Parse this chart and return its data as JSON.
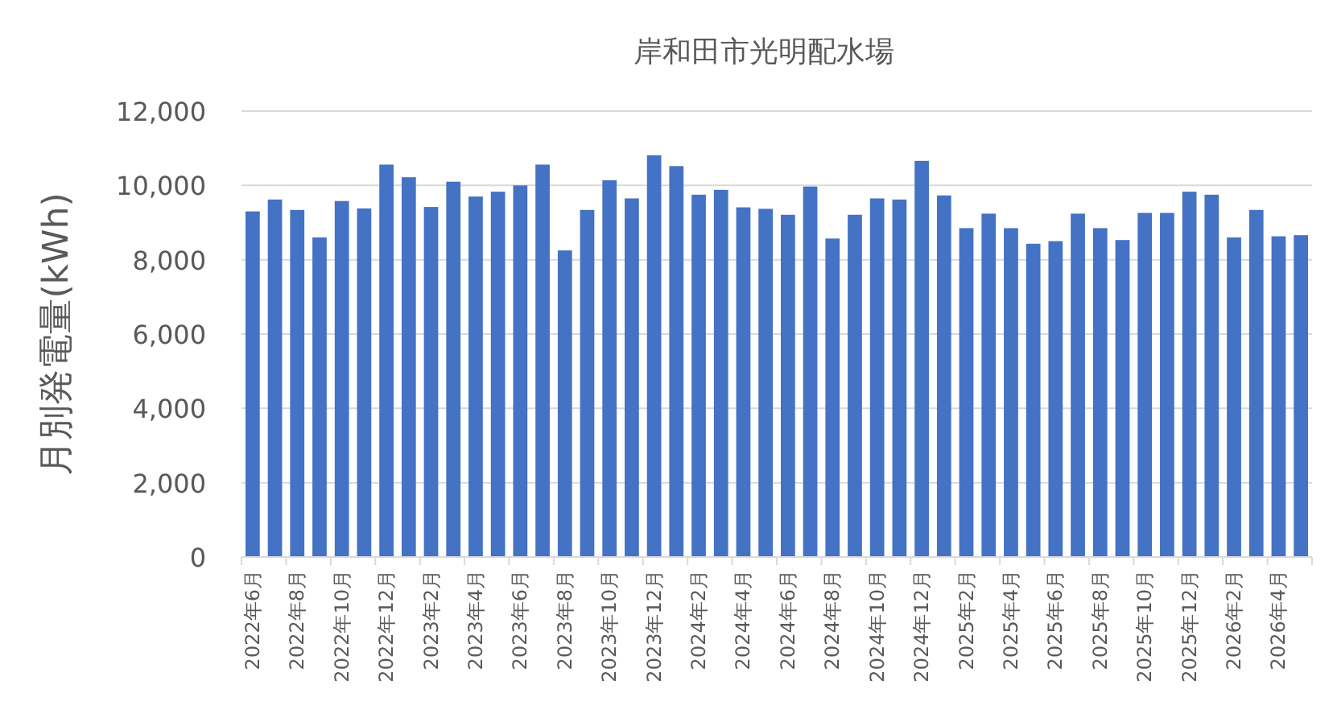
{
  "chart_data": {
    "type": "bar",
    "title": "岸和田市光明配水場",
    "ylabel": "月別発電量(kWh)",
    "categories": [
      "2022年6月",
      null,
      "2022年8月",
      null,
      "2022年10月",
      null,
      "2022年12月",
      null,
      "2023年2月",
      null,
      "2023年4月",
      null,
      "2023年6月",
      null,
      "2023年8月",
      null,
      "2023年10月",
      null,
      "2023年12月",
      null,
      "2024年2月",
      null,
      "2024年4月",
      null,
      "2024年6月",
      null,
      "2024年8月",
      null,
      "2024年10月",
      null,
      "2024年12月",
      null,
      "2025年2月",
      null,
      "2025年4月",
      null,
      "2025年6月",
      null,
      "2025年8月",
      null,
      "2025年10月",
      null,
      "2025年12月",
      null,
      "2026年2月",
      null,
      "2026年4月",
      null
    ],
    "values": [
      9300,
      9620,
      9340,
      8600,
      9580,
      9380,
      10560,
      10220,
      9420,
      10100,
      9700,
      9830,
      10000,
      10560,
      8250,
      9340,
      10140,
      9650,
      10810,
      10520,
      9750,
      9880,
      9410,
      9370,
      9210,
      9970,
      8570,
      9210,
      9650,
      9620,
      10660,
      9730,
      8850,
      9240,
      8850,
      8430,
      8500,
      9240,
      8850,
      8530,
      9260,
      9260,
      9830,
      9750,
      8600,
      9340,
      8630,
      8660
    ],
    "color": "#4472c4",
    "ylim": [
      0,
      12000
    ],
    "yticks": [
      {
        "value": 0,
        "label": "0"
      },
      {
        "value": 2000,
        "label": "2,000"
      },
      {
        "value": 4000,
        "label": "4,000"
      },
      {
        "value": 6000,
        "label": "6,000"
      },
      {
        "value": 8000,
        "label": "8,000"
      },
      {
        "value": 10000,
        "label": "10,000"
      },
      {
        "value": 12000,
        "label": "12,000"
      }
    ],
    "grid": "y"
  }
}
